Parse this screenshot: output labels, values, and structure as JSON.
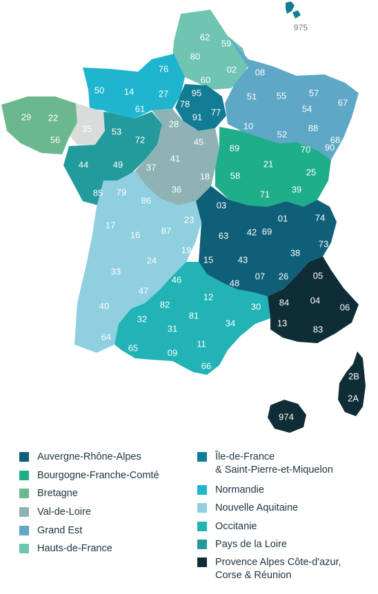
{
  "colors": {
    "auvergne": "#0f5f78",
    "bourgogne": "#1fae8a",
    "bretagne": "#6cb88e",
    "centre": "#8fb3b5",
    "grandest": "#5ea7c6",
    "hauts": "#6fc4b2",
    "idf": "#117c93",
    "normandie": "#1fb5cf",
    "aquitaine": "#8fcfdf",
    "occitanie": "#21b3b6",
    "pdl": "#239a9b",
    "paca": "#0f2d36",
    "none": "#dadcdc"
  },
  "departments": {
    "975": "975",
    "62": "62",
    "59": "59",
    "80": "80",
    "60": "60",
    "02": "02",
    "76": "76",
    "50": "50",
    "14": "14",
    "27": "27",
    "61": "61",
    "95": "95",
    "78": "78",
    "91": "91",
    "77": "77",
    "08": "08",
    "51": "51",
    "55": "55",
    "57": "57",
    "67": "67",
    "54": "54",
    "10": "10",
    "52": "52",
    "88": "88",
    "68": "68",
    "29": "29",
    "22": "22",
    "56": "56",
    "35": "35",
    "53": "53",
    "72": "72",
    "44": "44",
    "49": "49",
    "85": "85",
    "28": "28",
    "45": "45",
    "41": "41",
    "37": "37",
    "36": "36",
    "18": "18",
    "89": "89",
    "21": "21",
    "70": "70",
    "90": "90",
    "58": "58",
    "25": "25",
    "71": "71",
    "39": "39",
    "79": "79",
    "86": "86",
    "17": "17",
    "16": "16",
    "87": "87",
    "23": "23",
    "19": "19",
    "24": "24",
    "33": "33",
    "47": "47",
    "40": "40",
    "64": "64",
    "03": "03",
    "63": "63",
    "42": "42",
    "69": "69",
    "01": "01",
    "74": "74",
    "73": "73",
    "38": "38",
    "15": "15",
    "43": "43",
    "07": "07",
    "26": "26",
    "46": "46",
    "12": "12",
    "48": "48",
    "82": "82",
    "30": "30",
    "32": "32",
    "81": "81",
    "34": "34",
    "31": "31",
    "65": "65",
    "09": "09",
    "11": "11",
    "66": "66",
    "05": "05",
    "04": "04",
    "06": "06",
    "84": "84",
    "13": "13",
    "83": "83",
    "2B": "2B",
    "2A": "2A",
    "974": "974"
  },
  "legend": {
    "left": [
      {
        "label": "Auvergne-Rhône-Alpes",
        "color": "#0f5f78"
      },
      {
        "label": "Bourgogne-Franche-Comté",
        "color": "#1fae8a"
      },
      {
        "label": "Bretagne",
        "color": "#6cb88e"
      },
      {
        "label": "Val-de-Loire",
        "color": "#8fb3b5"
      },
      {
        "label": "Grand Est",
        "color": "#5ea7c6"
      },
      {
        "label": "Hauts-de-France",
        "color": "#6fc4b2"
      }
    ],
    "right": [
      {
        "label": "Île-de-France\n& Saint-Pierre-et-Miquelon",
        "color": "#117c93"
      },
      {
        "label": "Normandie",
        "color": "#1fb5cf"
      },
      {
        "label": "Nouvelle Aquitaine",
        "color": "#8fcfdf"
      },
      {
        "label": "Occitanie",
        "color": "#21b3b6"
      },
      {
        "label": "Pays de la Loire",
        "color": "#239a9b"
      },
      {
        "label": "Provence Alpes Côte-d'azur,\nCorse & Réunion",
        "color": "#0f2d36"
      }
    ]
  }
}
